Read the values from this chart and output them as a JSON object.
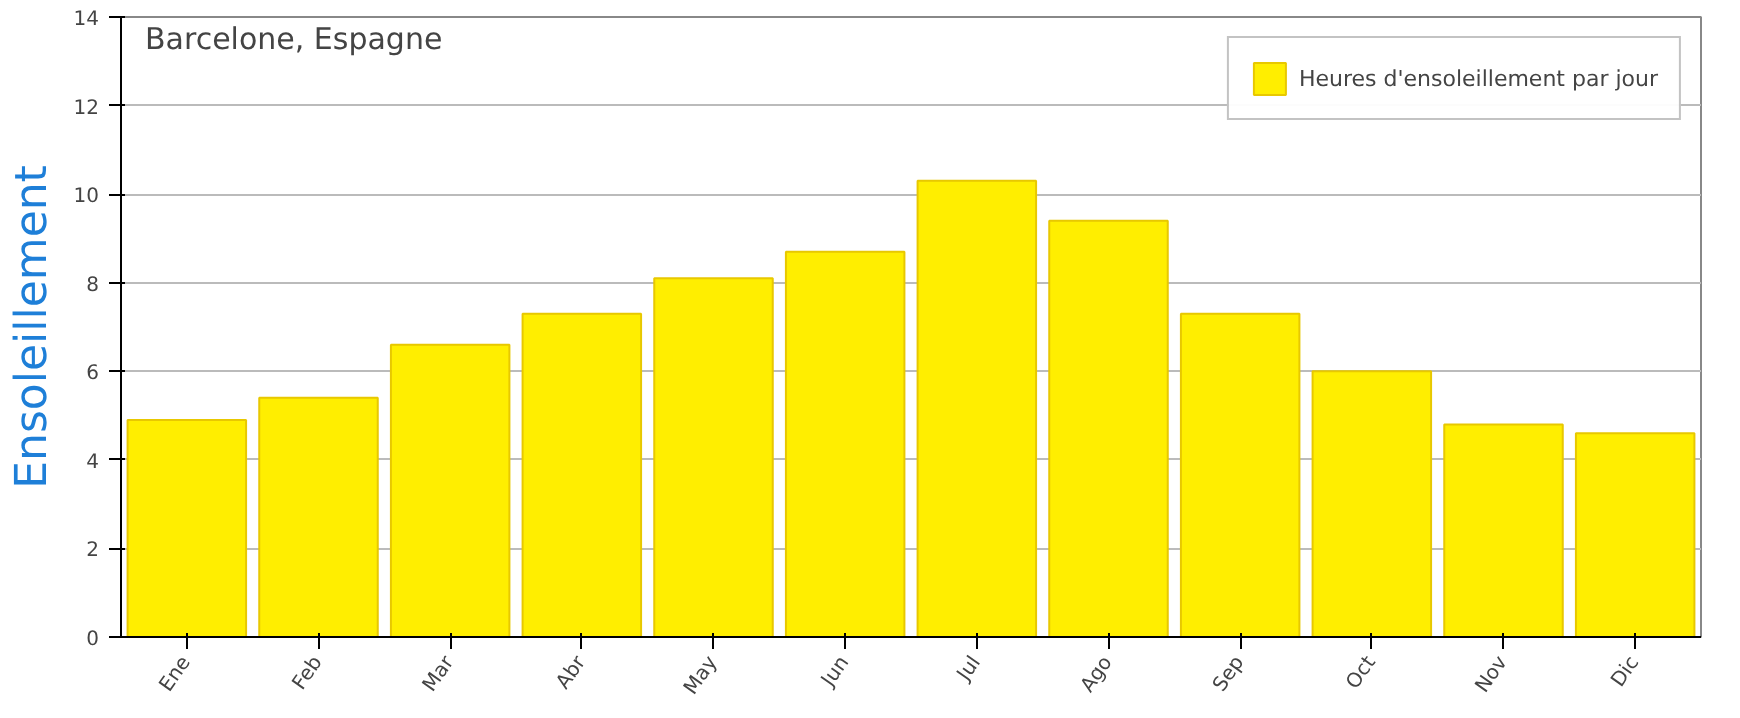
{
  "chart_data": {
    "type": "bar",
    "title": "Barcelone, Espagne",
    "ylabel": "Ensoleillement",
    "categories": [
      "Ene",
      "Feb",
      "Mar",
      "Abr",
      "May",
      "Jun",
      "Jul",
      "Ago",
      "Sep",
      "Oct",
      "Nov",
      "Dic"
    ],
    "series": [
      {
        "name": "Heures d'ensoleillement par jour",
        "color": "#ffee00",
        "values": [
          4.9,
          5.4,
          6.6,
          7.3,
          8.1,
          8.7,
          10.3,
          9.4,
          7.3,
          6.0,
          4.8,
          4.6
        ]
      }
    ],
    "ylim": [
      0,
      14
    ],
    "yticks": [
      0,
      2,
      4,
      6,
      8,
      10,
      12,
      14
    ],
    "grid": "y",
    "legend": "top right"
  }
}
